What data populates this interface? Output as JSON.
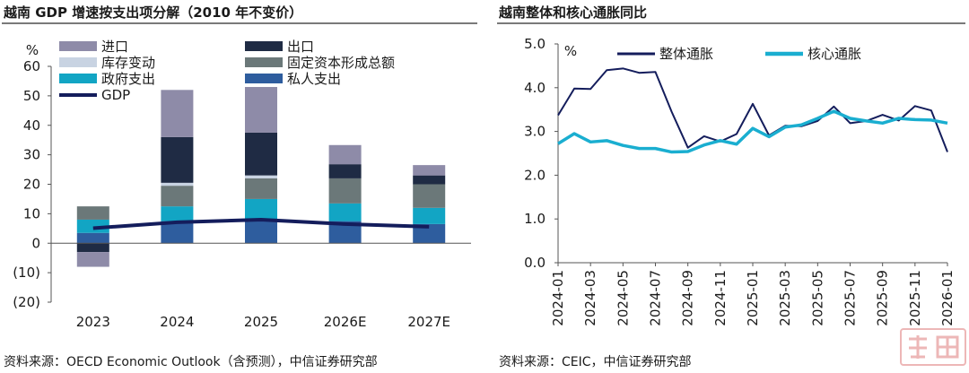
{
  "left": {
    "title": "越南 GDP 增速按支出项分解（2010 年不变价）",
    "source": "资料来源：OECD Economic Outlook（含预测），中信证券研究部"
  },
  "right": {
    "title": "越南整体和核心通胀同比",
    "source": "资料来源：CEIC，中信证券研究部"
  },
  "chart_data": [
    {
      "type": "bar",
      "stacked": true,
      "title": "越南 GDP 增速按支出项分解（2010 年不变价）",
      "ylabel": "%",
      "ylim": [
        -20,
        60
      ],
      "yticks": [
        -20,
        -10,
        0,
        10,
        20,
        30,
        40,
        50,
        60
      ],
      "ytick_labels": [
        "(20)",
        "(10)",
        "0",
        "10",
        "20",
        "30",
        "40",
        "50",
        "60"
      ],
      "categories": [
        "2023",
        "2024",
        "2025",
        "2026E",
        "2027E"
      ],
      "series": [
        {
          "name": "私人支出",
          "color": "#2e5d9e",
          "values": [
            3.5,
            7.5,
            8.0,
            7.5,
            6.5
          ]
        },
        {
          "name": "政府支出",
          "color": "#12a5c4",
          "values": [
            4.5,
            5.0,
            7.0,
            6.0,
            5.5
          ]
        },
        {
          "name": "固定资本形成总额",
          "color": "#6b7879",
          "values": [
            4.5,
            7.0,
            7.0,
            8.5,
            8.0
          ]
        },
        {
          "name": "库存变动",
          "color": "#c8d3e2",
          "values": [
            0.0,
            1.0,
            1.0,
            0.0,
            0.0
          ]
        },
        {
          "name": "出口",
          "color": "#1f2b44",
          "values": [
            -3.0,
            15.5,
            14.5,
            4.8,
            3.0
          ]
        },
        {
          "name": "进口",
          "color": "#8e8ba8",
          "values": [
            -5.0,
            16.0,
            15.5,
            6.5,
            3.5
          ]
        }
      ],
      "line": {
        "name": "GDP",
        "color": "#141d5c",
        "values": [
          5.1,
          7.1,
          8.0,
          6.5,
          5.6
        ]
      },
      "legend": [
        "进口",
        "出口",
        "库存变动",
        "固定资本形成总额",
        "政府支出",
        "私人支出",
        "GDP"
      ]
    },
    {
      "type": "line",
      "title": "越南整体和核心通胀同比",
      "ylabel": "%",
      "ylim": [
        0,
        5
      ],
      "yticks": [
        0.0,
        1.0,
        2.0,
        3.0,
        4.0,
        5.0
      ],
      "ytick_labels": [
        "0.0",
        "1.0",
        "2.0",
        "3.0",
        "4.0",
        "5.0"
      ],
      "x": [
        "2024-01",
        "2024-02",
        "2024-03",
        "2024-04",
        "2024-05",
        "2024-06",
        "2024-07",
        "2024-08",
        "2024-09",
        "2024-10",
        "2024-11",
        "2024-12",
        "2025-01",
        "2025-02",
        "2025-03",
        "2025-04",
        "2025-05",
        "2025-06",
        "2025-07",
        "2025-08",
        "2025-09",
        "2025-10",
        "2025-11",
        "2025-12",
        "2026-01"
      ],
      "xtick_labels": [
        "2024-01",
        "2024-03",
        "2024-05",
        "2024-07",
        "2024-09",
        "2024-11",
        "2025-01",
        "2025-03",
        "2025-05",
        "2025-07",
        "2025-09",
        "2025-11",
        "2026-01"
      ],
      "series": [
        {
          "name": "整体通胀",
          "color": "#141d5c",
          "values": [
            3.37,
            3.98,
            3.97,
            4.4,
            4.44,
            4.34,
            4.36,
            3.45,
            2.63,
            2.89,
            2.77,
            2.94,
            3.63,
            2.91,
            3.13,
            3.12,
            3.24,
            3.57,
            3.19,
            3.24,
            3.38,
            3.25,
            3.58,
            3.48,
            2.53
          ]
        },
        {
          "name": "核心通胀",
          "color": "#1aaed0",
          "values": [
            2.72,
            2.95,
            2.76,
            2.79,
            2.68,
            2.61,
            2.61,
            2.53,
            2.54,
            2.69,
            2.79,
            2.71,
            3.07,
            2.88,
            3.1,
            3.15,
            3.3,
            3.46,
            3.3,
            3.24,
            3.19,
            3.3,
            3.27,
            3.26,
            3.19
          ]
        }
      ],
      "legend": [
        "整体通胀",
        "核心通胀"
      ]
    }
  ]
}
